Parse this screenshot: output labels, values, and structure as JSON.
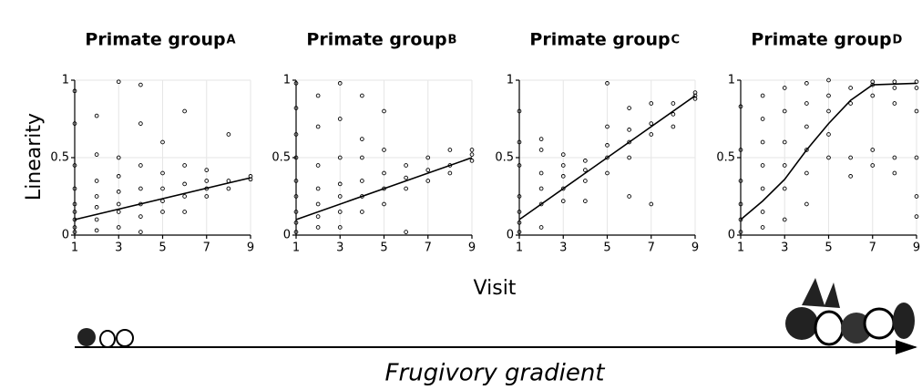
{
  "axis_labels": {
    "y": "Linearity",
    "x": "Visit",
    "gradient": "Frugivory gradient"
  },
  "chart_data": [
    {
      "type": "scatter",
      "title": "Primate group",
      "panel_label": "A",
      "xlim": [
        1,
        9
      ],
      "ylim": [
        0,
        1
      ],
      "xticks": [
        1,
        3,
        5,
        7,
        9
      ],
      "yticks": [
        0,
        0.5,
        1
      ],
      "grid": true,
      "color": "#000000",
      "points": {
        "x": [
          1,
          1,
          1,
          1,
          1,
          1,
          1,
          1,
          1,
          2,
          2,
          2,
          2,
          2,
          2,
          2,
          3,
          3,
          3,
          3,
          3,
          3,
          3,
          4,
          4,
          4,
          4,
          4,
          4,
          4,
          5,
          5,
          5,
          5,
          5,
          6,
          6,
          6,
          6,
          6,
          7,
          7,
          7,
          7,
          8,
          8,
          8,
          9,
          9
        ],
        "y": [
          0.02,
          0.05,
          0.1,
          0.15,
          0.2,
          0.3,
          0.45,
          0.72,
          0.93,
          0.03,
          0.1,
          0.18,
          0.25,
          0.35,
          0.52,
          0.77,
          0.05,
          0.15,
          0.2,
          0.28,
          0.38,
          0.5,
          0.99,
          0.02,
          0.12,
          0.2,
          0.3,
          0.45,
          0.72,
          0.97,
          0.15,
          0.22,
          0.3,
          0.4,
          0.6,
          0.15,
          0.25,
          0.33,
          0.45,
          0.8,
          0.25,
          0.3,
          0.35,
          0.42,
          0.3,
          0.35,
          0.65,
          0.36,
          0.38
        ]
      },
      "fit": {
        "x": [
          1,
          9
        ],
        "y": [
          0.1,
          0.37
        ]
      }
    },
    {
      "type": "scatter",
      "title": "Primate group",
      "panel_label": "B",
      "xlim": [
        1,
        9
      ],
      "ylim": [
        0,
        1
      ],
      "xticks": [
        1,
        3,
        5,
        7,
        9
      ],
      "yticks": [
        0,
        0.5,
        1
      ],
      "grid": true,
      "color": "#000000",
      "points": {
        "x": [
          1,
          1,
          1,
          1,
          1,
          1,
          1,
          1,
          1,
          2,
          2,
          2,
          2,
          2,
          2,
          2,
          3,
          3,
          3,
          3,
          3,
          3,
          3,
          4,
          4,
          4,
          4,
          4,
          4,
          5,
          5,
          5,
          5,
          5,
          6,
          6,
          6,
          6,
          7,
          7,
          7,
          8,
          8,
          8,
          9,
          9,
          9
        ],
        "y": [
          0.02,
          0.08,
          0.15,
          0.25,
          0.35,
          0.5,
          0.65,
          0.82,
          0.98,
          0.05,
          0.12,
          0.2,
          0.3,
          0.45,
          0.7,
          0.9,
          0.05,
          0.15,
          0.25,
          0.33,
          0.5,
          0.75,
          0.98,
          0.15,
          0.25,
          0.35,
          0.5,
          0.62,
          0.9,
          0.2,
          0.3,
          0.4,
          0.55,
          0.8,
          0.02,
          0.3,
          0.37,
          0.45,
          0.35,
          0.42,
          0.5,
          0.4,
          0.45,
          0.55,
          0.48,
          0.52,
          0.55
        ]
      },
      "fit": {
        "x": [
          1,
          9
        ],
        "y": [
          0.1,
          0.5
        ]
      }
    },
    {
      "type": "scatter",
      "title": "Primate group",
      "panel_label": "C",
      "xlim": [
        1,
        9
      ],
      "ylim": [
        0,
        1
      ],
      "xticks": [
        1,
        3,
        5,
        7,
        9
      ],
      "yticks": [
        0,
        0.5,
        1
      ],
      "grid": true,
      "color": "#000000",
      "points": {
        "x": [
          1,
          1,
          1,
          1,
          1,
          1,
          1,
          2,
          2,
          2,
          2,
          2,
          2,
          3,
          3,
          3,
          3,
          3,
          4,
          4,
          4,
          4,
          5,
          5,
          5,
          5,
          5,
          6,
          6,
          6,
          6,
          6,
          7,
          7,
          7,
          7,
          8,
          8,
          8,
          9,
          9,
          9
        ],
        "y": [
          0.02,
          0.08,
          0.15,
          0.25,
          0.45,
          0.6,
          0.8,
          0.05,
          0.2,
          0.3,
          0.4,
          0.55,
          0.62,
          0.22,
          0.3,
          0.38,
          0.45,
          0.52,
          0.22,
          0.35,
          0.42,
          0.48,
          0.4,
          0.5,
          0.58,
          0.7,
          0.98,
          0.25,
          0.5,
          0.6,
          0.68,
          0.82,
          0.2,
          0.65,
          0.72,
          0.85,
          0.7,
          0.78,
          0.85,
          0.88,
          0.9,
          0.92
        ]
      },
      "fit": {
        "x": [
          1,
          9
        ],
        "y": [
          0.1,
          0.9
        ]
      }
    },
    {
      "type": "scatter",
      "title": "Primate group",
      "panel_label": "D",
      "xlim": [
        1,
        9
      ],
      "ylim": [
        0,
        1
      ],
      "xticks": [
        1,
        3,
        5,
        7,
        9
      ],
      "yticks": [
        0,
        0.5,
        1
      ],
      "grid": true,
      "color": "#000000",
      "points": {
        "x": [
          1,
          1,
          1,
          1,
          1,
          1,
          2,
          2,
          2,
          2,
          2,
          2,
          2,
          3,
          3,
          3,
          3,
          3,
          3,
          4,
          4,
          4,
          4,
          4,
          4,
          5,
          5,
          5,
          5,
          5,
          6,
          6,
          6,
          6,
          7,
          7,
          7,
          7,
          7,
          8,
          8,
          8,
          8,
          8,
          9,
          9,
          9,
          9,
          9,
          9
        ],
        "y": [
          0.02,
          0.1,
          0.2,
          0.35,
          0.55,
          0.83,
          0.05,
          0.15,
          0.3,
          0.45,
          0.6,
          0.75,
          0.9,
          0.1,
          0.3,
          0.45,
          0.6,
          0.8,
          0.95,
          0.2,
          0.4,
          0.55,
          0.7,
          0.85,
          0.98,
          0.5,
          0.65,
          0.8,
          0.9,
          1.0,
          0.38,
          0.5,
          0.85,
          0.95,
          0.45,
          0.55,
          0.9,
          0.97,
          0.99,
          0.4,
          0.5,
          0.85,
          0.95,
          0.99,
          0.12,
          0.25,
          0.5,
          0.8,
          0.95,
          0.99
        ]
      },
      "fit": {
        "x": [
          1,
          2,
          3,
          4,
          5,
          6,
          7,
          9
        ],
        "y": [
          0.1,
          0.22,
          0.36,
          0.55,
          0.72,
          0.87,
          0.97,
          0.98
        ]
      }
    }
  ]
}
